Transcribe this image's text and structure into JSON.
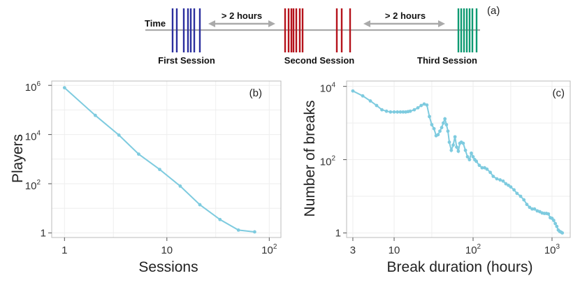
{
  "timeline": {
    "time_label": "Time",
    "gap_label_1": "> 2 hours",
    "gap_label_2": "> 2 hours",
    "panel_label": "(a)",
    "sessions": [
      {
        "name": "First Session",
        "color": "#2b2f9e"
      },
      {
        "name": "Second Session",
        "color": "#b5121b"
      },
      {
        "name": "Third Session",
        "color": "#0e9a72"
      }
    ],
    "axis_color": "#aaaaaa"
  },
  "colors": {
    "series": "#7ecbdf",
    "grid": "#eeeeee",
    "frame": "#bbbbbb"
  },
  "chart_data": [
    {
      "type": "line",
      "panel_label": "(b)",
      "xlabel": "Sessions",
      "ylabel": "Players",
      "xscale": "log",
      "yscale": "log",
      "xlim": [
        0.75,
        130
      ],
      "ylim": [
        0.65,
        1500000
      ],
      "x_ticks": [
        {
          "value": 1,
          "base": "1",
          "exp": ""
        },
        {
          "value": 10,
          "base": "10",
          "exp": ""
        },
        {
          "value": 100,
          "base": "10",
          "exp": "2"
        }
      ],
      "y_ticks": [
        {
          "value": 1,
          "base": "1",
          "exp": ""
        },
        {
          "value": 100,
          "base": "10",
          "exp": "2"
        },
        {
          "value": 10000,
          "base": "10",
          "exp": "4"
        },
        {
          "value": 1000000,
          "base": "10",
          "exp": "6"
        }
      ],
      "series": [
        {
          "name": "Players",
          "x": [
            1,
            2,
            3.4,
            5.3,
            8.5,
            13.5,
            21,
            33,
            50,
            72
          ],
          "y": [
            800000,
            60000,
            9500,
            1600,
            380,
            80,
            14,
            3.5,
            1.3,
            1.1
          ]
        }
      ]
    },
    {
      "type": "line",
      "panel_label": "(c)",
      "xlabel": "Break duration (hours)",
      "ylabel": "Number of breaks",
      "xscale": "log",
      "yscale": "log",
      "xlim": [
        2.5,
        1700
      ],
      "ylim": [
        0.75,
        14000
      ],
      "x_ticks": [
        {
          "value": 3,
          "base": "3",
          "exp": ""
        },
        {
          "value": 10,
          "base": "10",
          "exp": ""
        },
        {
          "value": 100,
          "base": "10",
          "exp": "2"
        },
        {
          "value": 1000,
          "base": "10",
          "exp": "3"
        }
      ],
      "y_ticks": [
        {
          "value": 1,
          "base": "1",
          "exp": ""
        },
        {
          "value": 100,
          "base": "10",
          "exp": "2"
        },
        {
          "value": 10000,
          "base": "10",
          "exp": "4"
        }
      ],
      "series": [
        {
          "name": "Number of breaks",
          "x": [
            3,
            4,
            5,
            6,
            7,
            8,
            9,
            10,
            11,
            12,
            13,
            14,
            15,
            16,
            18,
            20,
            22,
            24,
            26,
            28,
            30,
            32,
            34,
            36,
            38,
            40,
            42,
            44,
            46,
            48,
            50,
            53,
            56,
            59,
            62,
            65,
            68,
            71,
            75,
            80,
            85,
            90,
            95,
            100,
            105,
            110,
            120,
            130,
            140,
            150,
            165,
            180,
            200,
            220,
            240,
            260,
            280,
            300,
            330,
            360,
            400,
            440,
            480,
            520,
            560,
            600,
            650,
            700,
            750,
            800,
            850,
            900,
            950,
            1000,
            1050,
            1100,
            1150,
            1200,
            1250,
            1300,
            1350
          ],
          "y": [
            7500,
            5500,
            4000,
            3000,
            2300,
            2100,
            2000,
            2000,
            2000,
            2000,
            2000,
            2000,
            2050,
            2100,
            2300,
            2600,
            3000,
            3300,
            3100,
            1500,
            900,
            700,
            450,
            480,
            600,
            750,
            1000,
            1300,
            900,
            600,
            300,
            180,
            250,
            420,
            220,
            170,
            280,
            300,
            280,
            180,
            120,
            100,
            150,
            120,
            100,
            90,
            70,
            60,
            60,
            55,
            45,
            35,
            30,
            28,
            26,
            22,
            20,
            18,
            15,
            12,
            10,
            8,
            6,
            5,
            4.5,
            4.5,
            4,
            3.8,
            3.5,
            3.4,
            3.4,
            3.3,
            2.6,
            2.5,
            2.2,
            1.8,
            1.5,
            1.2,
            1.1,
            1.05,
            1.0
          ]
        }
      ]
    }
  ]
}
